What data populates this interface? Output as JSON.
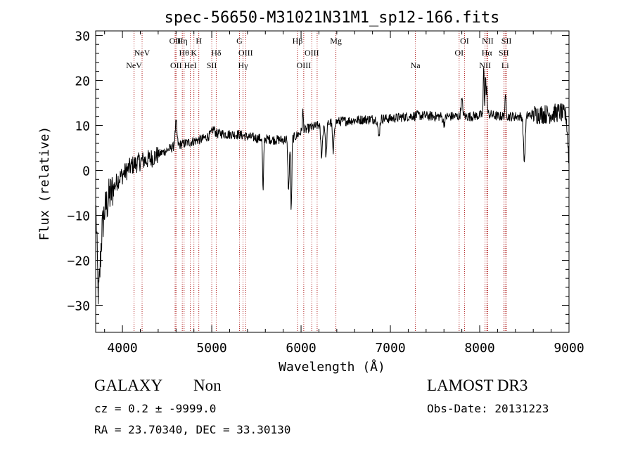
{
  "chart_data": {
    "type": "line",
    "title": "spec-56650-M31021N31M1_sp12-166.fits",
    "xlabel": "Wavelength (Å)",
    "ylabel": "Flux (relative)",
    "xlim": [
      3700,
      9000
    ],
    "ylim": [
      -36,
      31
    ],
    "xticks": [
      4000,
      5000,
      6000,
      7000,
      8000,
      9000
    ],
    "yticks": [
      -30,
      -20,
      -10,
      0,
      10,
      20,
      30
    ],
    "line_color": "#000000",
    "marker_color": "#b22222",
    "continuum": [
      [
        3700,
        -5
      ],
      [
        3730,
        -22
      ],
      [
        3760,
        -14
      ],
      [
        3800,
        -9
      ],
      [
        3850,
        -6
      ],
      [
        3900,
        -4
      ],
      [
        3950,
        -2
      ],
      [
        4000,
        -1
      ],
      [
        4050,
        0
      ],
      [
        4100,
        1
      ],
      [
        4200,
        2
      ],
      [
        4300,
        2.5
      ],
      [
        4400,
        3.5
      ],
      [
        4500,
        4.5
      ],
      [
        4600,
        5.5
      ],
      [
        4700,
        6
      ],
      [
        4800,
        6.5
      ],
      [
        4900,
        7
      ],
      [
        5000,
        8
      ],
      [
        5100,
        8.2
      ],
      [
        5200,
        8
      ],
      [
        5300,
        8
      ],
      [
        5400,
        7.5
      ],
      [
        5500,
        7.2
      ],
      [
        5600,
        7
      ],
      [
        5700,
        6.8
      ],
      [
        5800,
        6.8
      ],
      [
        5900,
        7
      ],
      [
        6000,
        8.5
      ],
      [
        6100,
        9.5
      ],
      [
        6200,
        10
      ],
      [
        6300,
        10.5
      ],
      [
        6400,
        10.8
      ],
      [
        6500,
        11
      ],
      [
        6700,
        11.3
      ],
      [
        6900,
        11.5
      ],
      [
        7000,
        11.5
      ],
      [
        7200,
        12
      ],
      [
        7300,
        12.2
      ],
      [
        7500,
        12
      ],
      [
        7700,
        12
      ],
      [
        7900,
        12
      ],
      [
        8000,
        12.2
      ],
      [
        8100,
        12.5
      ],
      [
        8200,
        12
      ],
      [
        8300,
        12
      ],
      [
        8400,
        12
      ],
      [
        8500,
        12
      ],
      [
        8600,
        12.5
      ],
      [
        8700,
        12.5
      ],
      [
        8800,
        12.5
      ],
      [
        8900,
        13
      ],
      [
        8970,
        12
      ],
      [
        9000,
        2
      ]
    ],
    "features": [
      [
        3735,
        -27,
        20
      ],
      [
        4600,
        10.5,
        10
      ],
      [
        5020,
        9.2,
        15
      ],
      [
        5575,
        -5,
        6
      ],
      [
        5860,
        -4.5,
        8
      ],
      [
        5890,
        -9,
        6
      ],
      [
        6020,
        13,
        6
      ],
      [
        6230,
        3.5,
        10
      ],
      [
        6280,
        3,
        8
      ],
      [
        6360,
        3.5,
        8
      ],
      [
        6870,
        7.5,
        10
      ],
      [
        7600,
        10.5,
        12
      ],
      [
        7800,
        15.5,
        10
      ],
      [
        8045,
        23,
        5
      ],
      [
        8065,
        21,
        5
      ],
      [
        8080,
        18,
        5
      ],
      [
        8290,
        16,
        8
      ],
      [
        8500,
        2,
        10
      ]
    ],
    "lines": [
      {
        "wl": 4130,
        "row": 3,
        "label": "NeV"
      },
      {
        "wl": 4220,
        "row": 2,
        "label": "NeV"
      },
      {
        "wl": 4590,
        "row": 1,
        "label": "OII"
      },
      {
        "wl": 4600,
        "row": 3,
        "label": "OII"
      },
      {
        "wl": 4670,
        "row": 1,
        "label": "Hη"
      },
      {
        "wl": 4690,
        "row": 2,
        "label": "Hθ"
      },
      {
        "wl": 4760,
        "row": 3,
        "label": "HeI"
      },
      {
        "wl": 4800,
        "row": 2,
        "label": "K"
      },
      {
        "wl": 4855,
        "row": 1,
        "label": "H"
      },
      {
        "wl": 5000,
        "row": 3,
        "label": "SII"
      },
      {
        "wl": 5050,
        "row": 2,
        "label": "Hδ"
      },
      {
        "wl": 5310,
        "row": 1,
        "label": "G"
      },
      {
        "wl": 5350,
        "row": 3,
        "label": "Hγ"
      },
      {
        "wl": 5380,
        "row": 2,
        "label": "OIII"
      },
      {
        "wl": 5960,
        "row": 1,
        "label": "Hβ"
      },
      {
        "wl": 6030,
        "row": 3,
        "label": "OIII"
      },
      {
        "wl": 6120,
        "row": 2,
        "label": "OIII"
      },
      {
        "wl": 6180,
        "row": 3,
        "label": ""
      },
      {
        "wl": 6390,
        "row": 1,
        "label": "Mg"
      },
      {
        "wl": 7280,
        "row": 3,
        "label": "Na"
      },
      {
        "wl": 7770,
        "row": 2,
        "label": "OI"
      },
      {
        "wl": 7830,
        "row": 1,
        "label": "OI"
      },
      {
        "wl": 8060,
        "row": 3,
        "label": "NII"
      },
      {
        "wl": 8080,
        "row": 2,
        "label": "Hα"
      },
      {
        "wl": 8090,
        "row": 1,
        "label": "NII"
      },
      {
        "wl": 8270,
        "row": 2,
        "label": "SII"
      },
      {
        "wl": 8285,
        "row": 3,
        "label": "Li"
      },
      {
        "wl": 8300,
        "row": 1,
        "label": "SII"
      }
    ]
  },
  "info": {
    "class_label": "GALAXY",
    "subclass_label": "Non",
    "survey": "LAMOST DR3",
    "cz": "cz = 0.2 ± -9999.0",
    "obs_date": "Obs-Date: 20131223",
    "radec": "RA =  23.70340, DEC =  33.30130"
  }
}
